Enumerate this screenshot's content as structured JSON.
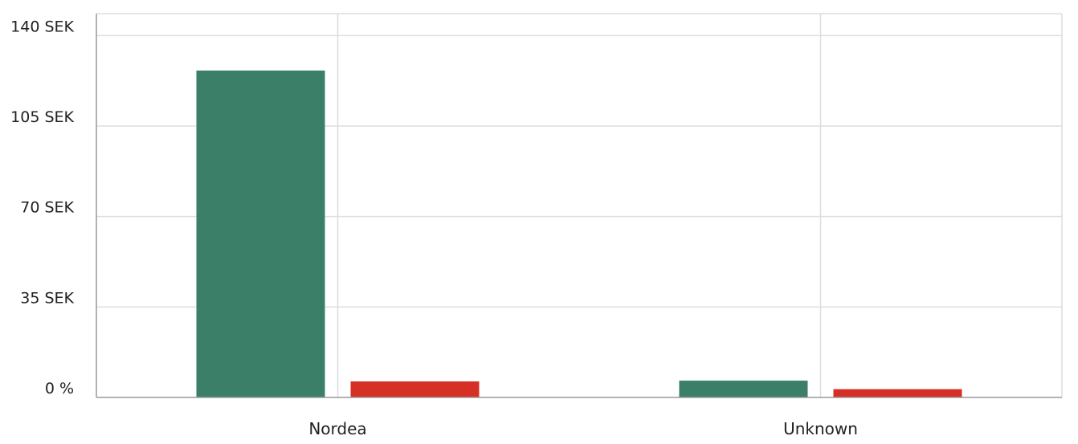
{
  "chart_data": {
    "type": "bar",
    "categories": [
      "Nordea",
      "Unknown"
    ],
    "series": [
      {
        "color": "#3b7f69",
        "values": [
          126.5,
          6.5
        ]
      },
      {
        "color": "#d63026",
        "values": [
          6.2,
          3.2
        ]
      }
    ],
    "y_ticks": [
      {
        "value": 0,
        "label": "0 %"
      },
      {
        "value": 35,
        "label": "35 SEK"
      },
      {
        "value": 70,
        "label": "70 SEK"
      },
      {
        "value": 105,
        "label": "105 SEK"
      },
      {
        "value": 140,
        "label": "140 SEK"
      }
    ],
    "ylim": [
      0,
      148.5
    ],
    "grid": true,
    "title": "",
    "xlabel": "",
    "ylabel": ""
  }
}
